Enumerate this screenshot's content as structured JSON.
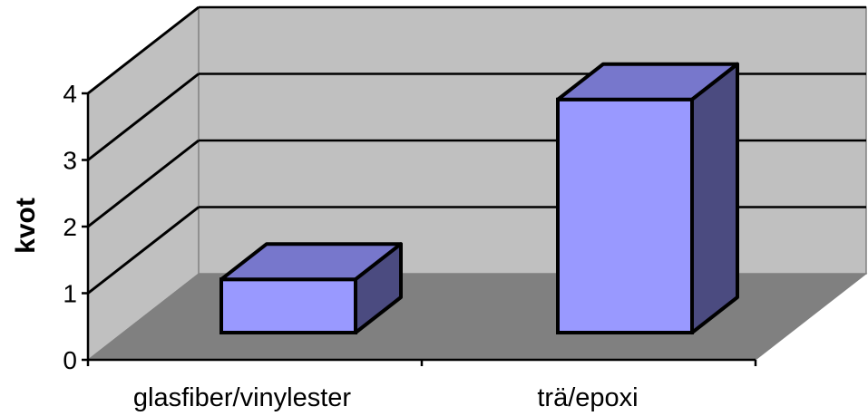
{
  "chart_data": {
    "type": "bar",
    "style": "3d",
    "categories": [
      "glasfiber/vinylester",
      "trä/epoxi"
    ],
    "values": [
      0.8,
      3.5
    ],
    "title": "",
    "xlabel": "",
    "ylabel": "kvot",
    "ylim": [
      0,
      4
    ],
    "yticks": [
      "0",
      "1",
      "2",
      "3",
      "4"
    ],
    "grid": true,
    "legend": "none",
    "colors": {
      "bar_front": "#9999FF",
      "bar_top": "#7777CC",
      "bar_side": "#4B4B80",
      "back_wall": "#C0C0C0",
      "side_wall": "#C0C0C0",
      "floor": "#808080",
      "outline": "#000000"
    }
  }
}
